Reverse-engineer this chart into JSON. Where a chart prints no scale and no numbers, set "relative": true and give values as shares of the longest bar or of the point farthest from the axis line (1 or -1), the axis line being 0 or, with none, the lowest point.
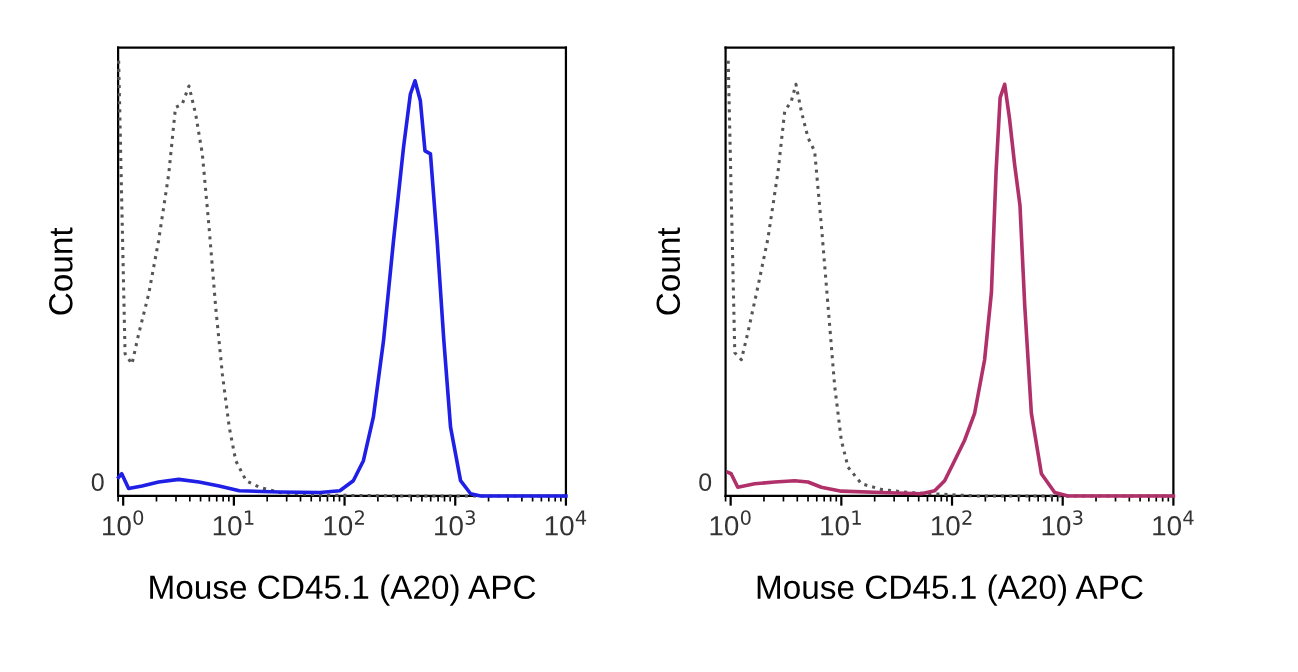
{
  "chart_data": [
    {
      "type": "line",
      "relative": true,
      "log": "x",
      "xlabel": "Mouse CD45.1 (A20) APC",
      "ylabel": "Count",
      "annotations": [
        "0"
      ],
      "xlim": [
        0.9,
        10000
      ],
      "xticks": [
        {
          "value": 1,
          "label": "10$^{0}$"
        },
        {
          "value": 10,
          "label": "10$^{1}$"
        },
        {
          "value": 100,
          "label": "10$^{2}$"
        },
        {
          "value": 1000,
          "label": "10$^{3}$"
        },
        {
          "value": 10000,
          "label": "10$^{4}$"
        }
      ],
      "series": [
        {
          "color": "#555555",
          "line_style": "dotted",
          "x": [
            0.91,
            1.04,
            1.2,
            1.38,
            1.7,
            2.09,
            2.58,
            2.97,
            3.41,
            3.93,
            4.52,
            5.19,
            5.97,
            6.86,
            7.88,
            9.08,
            10.4,
            12.9,
            17.0,
            25.8,
            59.7,
            318,
            10000
          ],
          "values": [
            1.0,
            0.327,
            0.303,
            0.372,
            0.464,
            0.587,
            0.74,
            0.893,
            0.9,
            0.942,
            0.877,
            0.786,
            0.617,
            0.432,
            0.279,
            0.158,
            0.081,
            0.035,
            0.02,
            0.008,
            0.002,
            0,
            0
          ]
        },
        {
          "color": "#1f1fe6",
          "line_style": "solid",
          "x": [
            0.91,
            0.97,
            1.12,
            1.48,
            2.09,
            3.18,
            4.84,
            7.36,
            11.2,
            25.8,
            59.7,
            90.7,
            120,
            148,
            182,
            225,
            277,
            341,
            393,
            433,
            484,
            533,
            597,
            686,
            789,
            907,
            1117,
            1377,
            1698,
            10000
          ],
          "values": [
            0.043,
            0.051,
            0.017,
            0.023,
            0.032,
            0.038,
            0.032,
            0.023,
            0.012,
            0.009,
            0.008,
            0.012,
            0.035,
            0.081,
            0.181,
            0.357,
            0.587,
            0.801,
            0.923,
            0.954,
            0.908,
            0.793,
            0.786,
            0.587,
            0.357,
            0.158,
            0.035,
            0.005,
            0,
            0
          ]
        }
      ]
    },
    {
      "type": "line",
      "relative": true,
      "log": "x",
      "xlabel": "Mouse CD45.1 (A20) APC",
      "ylabel": "Count",
      "annotations": [
        "0"
      ],
      "xlim": [
        0.9,
        10000
      ],
      "xticks": [
        {
          "value": 1,
          "label": "10$^{0}$"
        },
        {
          "value": 10,
          "label": "10$^{1}$"
        },
        {
          "value": 100,
          "label": "10$^{2}$"
        },
        {
          "value": 1000,
          "label": "10$^{3}$"
        },
        {
          "value": 10000,
          "label": "10$^{4}$"
        }
      ],
      "series": [
        {
          "color": "#555555",
          "line_style": "dotted",
          "x": [
            0.95,
            1.09,
            1.25,
            1.43,
            1.77,
            2.17,
            2.68,
            3.08,
            3.53,
            3.89,
            4.35,
            5.0,
            5.74,
            6.6,
            7.58,
            8.71,
            10,
            11.5,
            15.2,
            23.0,
            40,
            160,
            10000
          ],
          "values": [
            1.0,
            0.329,
            0.313,
            0.375,
            0.483,
            0.591,
            0.745,
            0.884,
            0.907,
            0.946,
            0.884,
            0.823,
            0.792,
            0.622,
            0.437,
            0.252,
            0.128,
            0.066,
            0.028,
            0.015,
            0.008,
            0,
            0
          ]
        },
        {
          "color": "#b0306a",
          "line_style": "solid",
          "x": [
            0.95,
            1.01,
            1.16,
            1.65,
            2.5,
            3.79,
            5.0,
            6.6,
            10,
            23,
            52.8,
            69.7,
            85.8,
            106,
            130,
            160,
            197,
            227,
            250,
            272,
            299,
            330,
            368,
            411,
            454,
            521,
            642,
            847,
            1117,
            10000
          ],
          "values": [
            0.054,
            0.051,
            0.02,
            0.028,
            0.032,
            0.035,
            0.032,
            0.02,
            0.011,
            0.008,
            0.005,
            0.012,
            0.035,
            0.082,
            0.128,
            0.19,
            0.313,
            0.468,
            0.745,
            0.915,
            0.946,
            0.869,
            0.761,
            0.668,
            0.437,
            0.19,
            0.051,
            0.008,
            0,
            0
          ]
        }
      ]
    }
  ]
}
